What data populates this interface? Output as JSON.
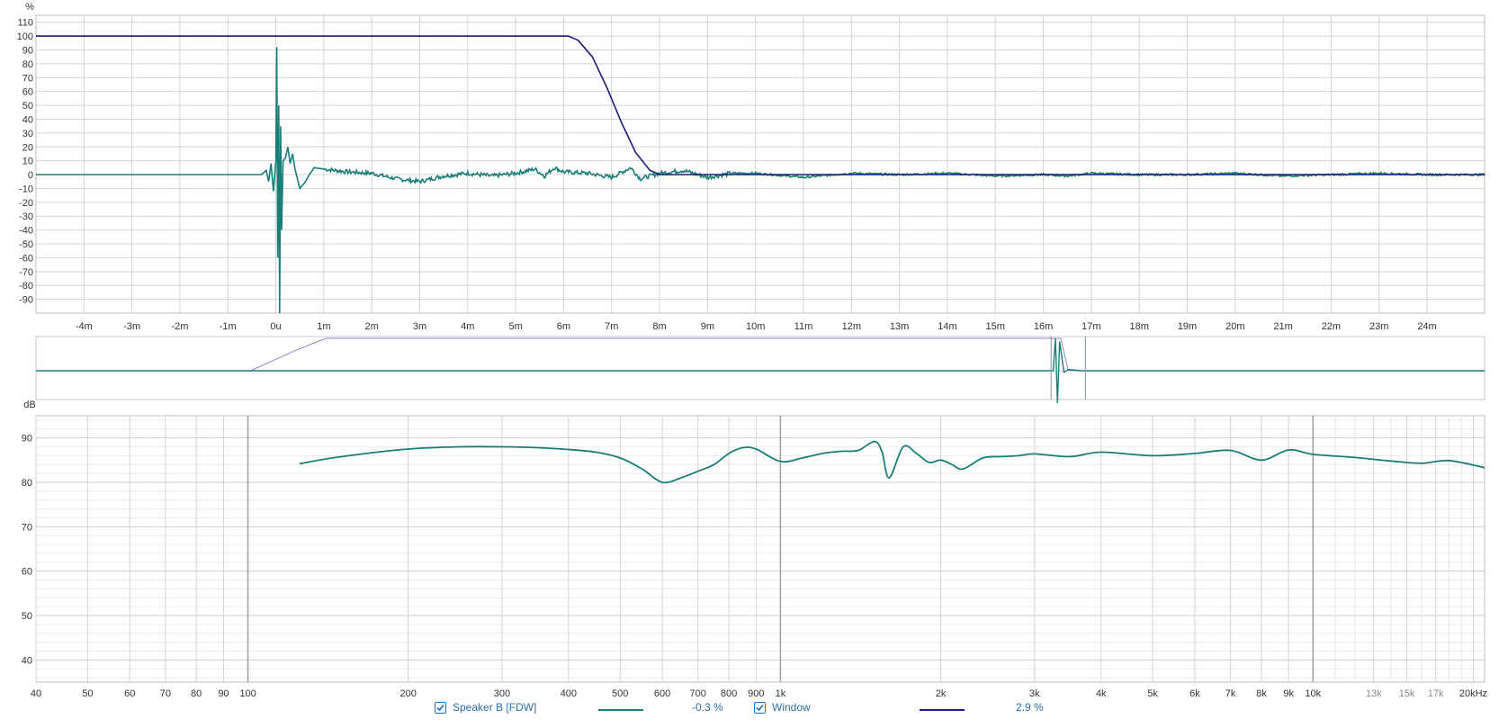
{
  "colors": {
    "speaker": "#1b7d78",
    "window": "#1d1d7f",
    "grid": "#d4d4d4",
    "grid_major": "#9a9a9a",
    "axis_text": "#333333",
    "legend_text": "#2d6ea8"
  },
  "legend": {
    "items": [
      {
        "name": "speaker",
        "label": "Speaker B [FDW]",
        "value": "-0.3 %",
        "checked": true,
        "color": "#1b7d78"
      },
      {
        "name": "window",
        "label": "Window",
        "value": "2.9 %",
        "checked": true,
        "color": "#1d1d7f"
      }
    ]
  },
  "chart_data": [
    {
      "type": "line",
      "panel": "impulse",
      "ylabel": "%",
      "ylim": [
        -100,
        115
      ],
      "yticks": [
        110,
        100,
        90,
        80,
        70,
        60,
        50,
        40,
        30,
        20,
        10,
        0,
        -10,
        -20,
        -30,
        -40,
        -50,
        -60,
        -70,
        -80,
        -90
      ],
      "ytick_labels": [
        "110",
        "100",
        "90",
        "80",
        "70",
        "60",
        "50",
        "40",
        "30",
        "20",
        "10",
        "0",
        "-10",
        "-20",
        "-30",
        "-40",
        "-50",
        "-60",
        "-70",
        "-80",
        "-90"
      ],
      "xlim": [
        -5,
        25.2
      ],
      "x_unit": "ms",
      "xticks": [
        -4,
        -3,
        -2,
        -1,
        0,
        1,
        2,
        3,
        4,
        5,
        6,
        7,
        8,
        9,
        10,
        11,
        12,
        13,
        14,
        15,
        16,
        17,
        18,
        19,
        20,
        21,
        22,
        23,
        24
      ],
      "xtick_labels": [
        "-4m",
        "-3m",
        "-2m",
        "-1m",
        "0u",
        "1m",
        "2m",
        "3m",
        "4m",
        "5m",
        "6m",
        "7m",
        "8m",
        "9m",
        "10m",
        "11m",
        "12m",
        "13m",
        "14m",
        "15m",
        "16m",
        "17m",
        "18m",
        "19m",
        "20m",
        "21m",
        "22m",
        "23m",
        "24m"
      ],
      "grid": true,
      "series": [
        {
          "name": "Speaker B [FDW]",
          "color": "#1b7d78",
          "x": [
            -5,
            -0.3,
            -0.2,
            -0.15,
            -0.1,
            -0.05,
            0,
            0.02,
            0.04,
            0.06,
            0.08,
            0.1,
            0.12,
            0.15,
            0.2,
            0.25,
            0.3,
            0.35,
            0.4,
            0.5,
            0.6,
            0.7,
            0.8,
            1.0,
            1.5,
            2.0,
            2.5,
            3.0,
            3.5,
            4.0,
            4.5,
            5.0,
            5.4,
            5.6,
            5.8,
            6.0,
            6.5,
            7.0,
            7.4,
            7.6,
            8.0,
            8.5,
            9.0,
            9.5,
            10.0,
            11.0,
            12.0,
            13.0,
            14.0,
            15.0,
            16.0,
            16.5,
            17.0,
            18.0,
            19.0,
            20.0,
            21.0,
            22.0,
            23.0,
            24.0,
            25.2
          ],
          "y": [
            0,
            0,
            3,
            -5,
            8,
            -12,
            10,
            92,
            -60,
            50,
            -100,
            35,
            -40,
            10,
            12,
            20,
            8,
            15,
            4,
            -10,
            -6,
            0,
            5,
            4,
            2,
            1,
            -3,
            -5,
            -1,
            1,
            -1,
            1,
            4,
            -1,
            5,
            2,
            1,
            -2,
            5,
            -3,
            1,
            3,
            -2,
            1,
            1,
            -2,
            1,
            0,
            1,
            -1,
            0,
            -1,
            1,
            0,
            0,
            1,
            -1,
            0,
            1,
            0,
            0
          ]
        },
        {
          "name": "Window",
          "color": "#1d1d7f",
          "x": [
            -5,
            6.1,
            6.3,
            6.6,
            6.9,
            7.2,
            7.5,
            7.8,
            8.0,
            25.2
          ],
          "y": [
            100,
            100,
            97,
            85,
            63,
            38,
            16,
            3,
            0,
            0
          ]
        }
      ]
    },
    {
      "type": "line",
      "panel": "overview",
      "series": [
        {
          "name": "Window",
          "color": "#8a8ad0",
          "x": [
            -5,
            6.1,
            8.0,
            25.2
          ],
          "y": [
            100,
            100,
            0,
            0
          ]
        },
        {
          "name": "Speaker B [FDW]",
          "color": "#1b7d78",
          "x": [
            -5,
            0,
            0.05,
            0.1,
            0.3,
            1,
            25.2
          ],
          "y": [
            0,
            0,
            100,
            -100,
            5,
            0,
            0
          ]
        }
      ]
    },
    {
      "type": "line",
      "panel": "frequency",
      "ylabel": "dB",
      "ylim": [
        35,
        95
      ],
      "yticks": [
        90,
        80,
        70,
        60,
        50,
        40
      ],
      "ytick_labels": [
        "90",
        "80",
        "70",
        "60",
        "50",
        "40"
      ],
      "x_scale": "log",
      "xlim": [
        40,
        21000
      ],
      "xticks": [
        40,
        50,
        60,
        70,
        80,
        90,
        100,
        200,
        300,
        400,
        500,
        600,
        700,
        800,
        900,
        1000,
        2000,
        3000,
        4000,
        5000,
        6000,
        7000,
        8000,
        9000,
        10000,
        13000,
        15000,
        17000,
        20000
      ],
      "xtick_labels": [
        "40",
        "50",
        "60",
        "70",
        "80",
        "90",
        "100",
        "200",
        "300",
        "400",
        "500",
        "600",
        "700",
        "800",
        "900",
        "1k",
        "2k",
        "3k",
        "4k",
        "5k",
        "6k",
        "7k",
        "8k",
        "9k",
        "10k",
        "13k",
        "15k",
        "17k",
        "20kHz"
      ],
      "grid": true,
      "series": [
        {
          "name": "Speaker B [FDW]",
          "color": "#1b7d78",
          "x": [
            125,
            150,
            200,
            250,
            300,
            350,
            400,
            450,
            500,
            550,
            600,
            650,
            700,
            750,
            800,
            850,
            900,
            1000,
            1100,
            1200,
            1300,
            1400,
            1500,
            1550,
            1600,
            1700,
            1800,
            1900,
            2000,
            2100,
            2200,
            2400,
            2600,
            2800,
            3000,
            3500,
            4000,
            5000,
            6000,
            7000,
            8000,
            9000,
            10000,
            12000,
            14000,
            16000,
            18000,
            21000
          ],
          "y": [
            84.2,
            85.8,
            87.5,
            88,
            88,
            87.8,
            87.4,
            86.8,
            85.5,
            83,
            80,
            81,
            82.5,
            84,
            86.5,
            87.8,
            87.5,
            84.7,
            85.5,
            86.5,
            87,
            87.2,
            89.2,
            87,
            81,
            88,
            86.5,
            84.5,
            85,
            84,
            83,
            85.5,
            85.8,
            86,
            86.4,
            85.8,
            86.8,
            86,
            86.5,
            87.2,
            85,
            87.3,
            86.3,
            85.6,
            84.8,
            84.3,
            84.9,
            83.3
          ]
        }
      ]
    }
  ]
}
